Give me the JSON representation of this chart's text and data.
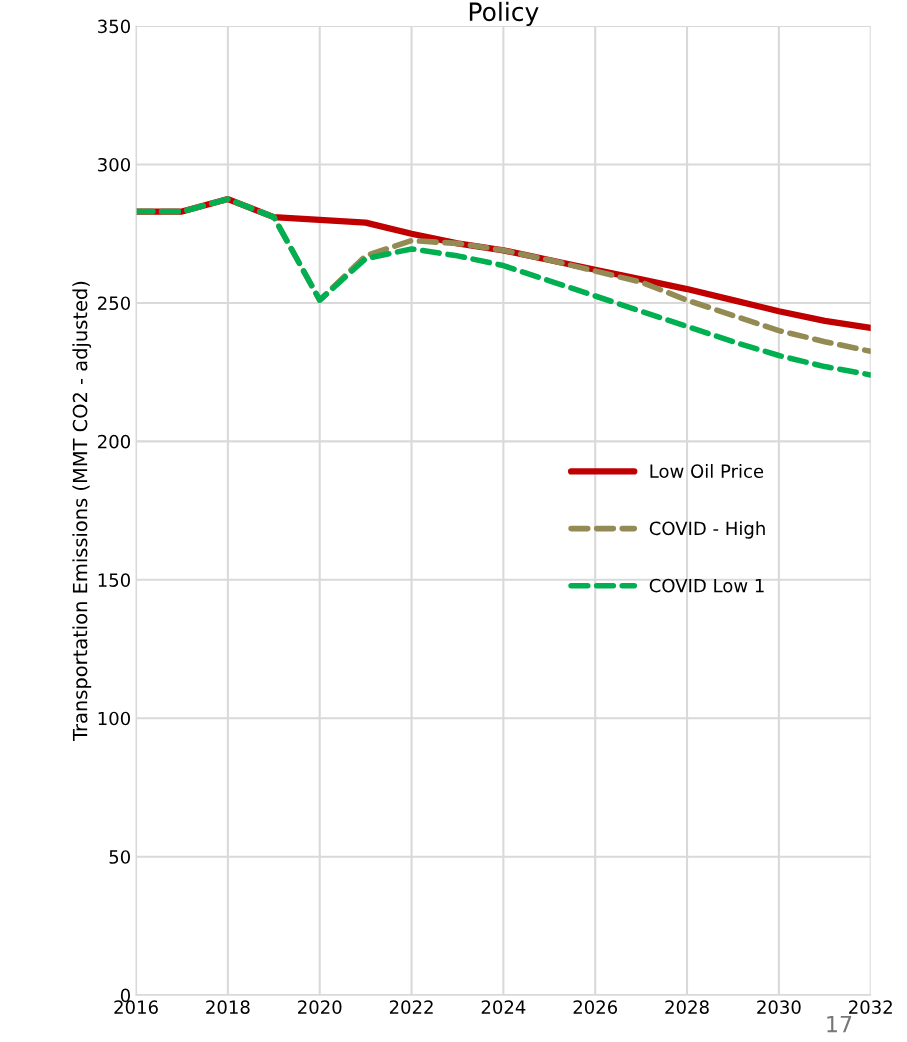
{
  "chart_data": {
    "type": "line",
    "title": "Policy",
    "ylabel": "Transportation Emissions (MMT CO2 - adjusted)",
    "x": [
      2016,
      2017,
      2018,
      2019,
      2020,
      2021,
      2022,
      2023,
      2024,
      2025,
      2026,
      2027,
      2028,
      2029,
      2030,
      2031,
      2032
    ],
    "series": [
      {
        "name": "Low Oil Price",
        "color": "#c00000",
        "line_style": "solid",
        "values": [
          283,
          283,
          287.5,
          281,
          280,
          279,
          275,
          271.5,
          269,
          265.5,
          262,
          258.5,
          255,
          251,
          247,
          243.5,
          241
        ]
      },
      {
        "name": "COVID - High",
        "color": "#948a54",
        "line_style": "dashed",
        "values": [
          283,
          283,
          287.5,
          281,
          251,
          267,
          272.5,
          271.5,
          269,
          265.5,
          261.5,
          257.5,
          251,
          245.5,
          240,
          236,
          232.5
        ]
      },
      {
        "name": "COVID Low 1",
        "color": "#00b050",
        "line_style": "dashed",
        "values": [
          283,
          283,
          287.5,
          281,
          251,
          266,
          269.5,
          267,
          263.5,
          258,
          252.5,
          247,
          241.5,
          236,
          231,
          227,
          224
        ]
      }
    ],
    "xlim": [
      2016,
      2032
    ],
    "xticks": [
      2016,
      2018,
      2020,
      2022,
      2024,
      2026,
      2028,
      2030,
      2032
    ],
    "ylim": [
      0,
      350
    ],
    "yticks": [
      0,
      50,
      100,
      150,
      200,
      250,
      300,
      350
    ],
    "grid": true,
    "legend": "right",
    "marker": "none",
    "annotations": [
      "17"
    ]
  }
}
